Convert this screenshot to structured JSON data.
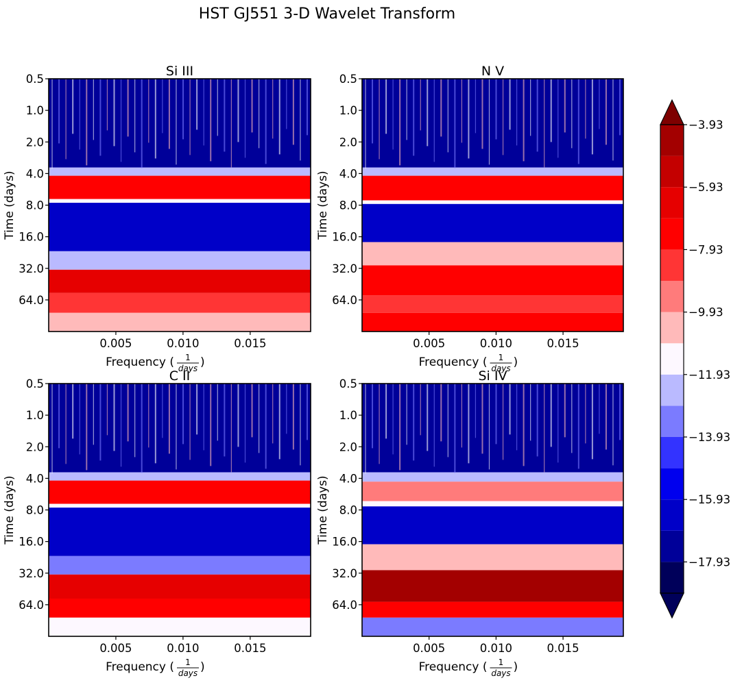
{
  "figure": {
    "title": "HST GJ551 3-D Wavelet Transform"
  },
  "axes_text": {
    "ylabel": "Time (days)",
    "xlabel_prefix": "Frequency (",
    "xlabel_num": "1",
    "xlabel_den": "days",
    "xlabel_suffix": ")"
  },
  "chart_data": [
    {
      "type": "heatmap",
      "title": "Si III",
      "xlim": [
        0,
        0.0195
      ],
      "xticks": [
        0.005,
        0.01,
        0.015
      ],
      "xtick_labels": [
        "0.005",
        "0.010",
        "0.015"
      ],
      "ylim": [
        0.5,
        128
      ],
      "yscale": "log2",
      "yinverted": true,
      "yticks": [
        0.5,
        1.0,
        2.0,
        4.0,
        8.0,
        16.0,
        32.0,
        64.0
      ],
      "ytick_labels": [
        "0.5",
        "1.0",
        "2.0",
        "4.0",
        "8.0",
        "16.0",
        "32.0",
        "64.0"
      ],
      "bands": [
        {
          "t_from": 0.5,
          "t_to": 3.5,
          "level": -17.4
        },
        {
          "t_from": 3.5,
          "t_to": 4.2,
          "level": -12.6
        },
        {
          "t_from": 4.2,
          "t_to": 7.0,
          "level": -7.6
        },
        {
          "t_from": 7.0,
          "t_to": 7.6,
          "level": -11.4
        },
        {
          "t_from": 7.6,
          "t_to": 22.0,
          "level": -16.6
        },
        {
          "t_from": 22.0,
          "t_to": 33.0,
          "level": -12.8
        },
        {
          "t_from": 33.0,
          "t_to": 55.0,
          "level": -6.8
        },
        {
          "t_from": 55.0,
          "t_to": 85.0,
          "level": -8.0
        },
        {
          "t_from": 85.0,
          "t_to": 128.0,
          "level": -10.8
        }
      ]
    },
    {
      "type": "heatmap",
      "title": "N V",
      "xlim": [
        0,
        0.0195
      ],
      "xticks": [
        0.005,
        0.01,
        0.015
      ],
      "xtick_labels": [
        "0.005",
        "0.010",
        "0.015"
      ],
      "ylim": [
        0.5,
        128
      ],
      "yscale": "log2",
      "yinverted": true,
      "yticks": [
        0.5,
        1.0,
        2.0,
        4.0,
        8.0,
        16.0,
        32.0,
        64.0
      ],
      "ytick_labels": [
        "0.5",
        "1.0",
        "2.0",
        "4.0",
        "8.0",
        "16.0",
        "32.0",
        "64.0"
      ],
      "bands": [
        {
          "t_from": 0.5,
          "t_to": 3.5,
          "level": -17.2
        },
        {
          "t_from": 3.5,
          "t_to": 4.2,
          "level": -12.4
        },
        {
          "t_from": 4.2,
          "t_to": 7.2,
          "level": -7.2
        },
        {
          "t_from": 7.2,
          "t_to": 7.8,
          "level": -11.2
        },
        {
          "t_from": 7.8,
          "t_to": 18.0,
          "level": -16.2
        },
        {
          "t_from": 18.0,
          "t_to": 30.0,
          "level": -10.6
        },
        {
          "t_from": 30.0,
          "t_to": 58.0,
          "level": -7.0
        },
        {
          "t_from": 58.0,
          "t_to": 85.0,
          "level": -8.4
        },
        {
          "t_from": 85.0,
          "t_to": 128.0,
          "level": -7.6
        }
      ]
    },
    {
      "type": "heatmap",
      "title": "C II",
      "xlim": [
        0,
        0.0195
      ],
      "xticks": [
        0.005,
        0.01,
        0.015
      ],
      "xtick_labels": [
        "0.005",
        "0.010",
        "0.015"
      ],
      "ylim": [
        0.5,
        128
      ],
      "yscale": "log2",
      "yinverted": true,
      "yticks": [
        0.5,
        1.0,
        2.0,
        4.0,
        8.0,
        16.0,
        32.0,
        64.0
      ],
      "ytick_labels": [
        "0.5",
        "1.0",
        "2.0",
        "4.0",
        "8.0",
        "16.0",
        "32.0",
        "64.0"
      ],
      "bands": [
        {
          "t_from": 0.5,
          "t_to": 3.5,
          "level": -17.2
        },
        {
          "t_from": 3.5,
          "t_to": 4.2,
          "level": -12.4
        },
        {
          "t_from": 4.2,
          "t_to": 7.0,
          "level": -7.4
        },
        {
          "t_from": 7.0,
          "t_to": 7.6,
          "level": -11.4
        },
        {
          "t_from": 7.6,
          "t_to": 22.0,
          "level": -16.6
        },
        {
          "t_from": 22.0,
          "t_to": 33.0,
          "level": -13.2
        },
        {
          "t_from": 33.0,
          "t_to": 56.0,
          "level": -6.4
        },
        {
          "t_from": 56.0,
          "t_to": 85.0,
          "level": -7.8
        },
        {
          "t_from": 85.0,
          "t_to": 128.0,
          "level": -11.0
        }
      ]
    },
    {
      "type": "heatmap",
      "title": "Si IV",
      "xlim": [
        0,
        0.0195
      ],
      "xticks": [
        0.005,
        0.01,
        0.015
      ],
      "xtick_labels": [
        "0.005",
        "0.010",
        "0.015"
      ],
      "ylim": [
        0.5,
        128
      ],
      "yscale": "log2",
      "yinverted": true,
      "yticks": [
        0.5,
        1.0,
        2.0,
        4.0,
        8.0,
        16.0,
        32.0,
        64.0
      ],
      "ytick_labels": [
        "0.5",
        "1.0",
        "2.0",
        "4.0",
        "8.0",
        "16.0",
        "32.0",
        "64.0"
      ],
      "bands": [
        {
          "t_from": 0.5,
          "t_to": 3.5,
          "level": -17.2
        },
        {
          "t_from": 3.5,
          "t_to": 4.3,
          "level": -12.6
        },
        {
          "t_from": 4.3,
          "t_to": 6.6,
          "level": -9.2
        },
        {
          "t_from": 6.6,
          "t_to": 7.4,
          "level": -11.6
        },
        {
          "t_from": 7.4,
          "t_to": 17.0,
          "level": -16.4
        },
        {
          "t_from": 17.0,
          "t_to": 30.0,
          "level": -10.2
        },
        {
          "t_from": 30.0,
          "t_to": 60.0,
          "level": -4.8
        },
        {
          "t_from": 60.0,
          "t_to": 85.0,
          "level": -7.8
        },
        {
          "t_from": 85.0,
          "t_to": 128.0,
          "level": -13.0
        }
      ]
    }
  ],
  "colorbar": {
    "levels": [
      -18.93,
      -17.93,
      -16.93,
      -15.93,
      -14.93,
      -13.93,
      -12.93,
      -11.93,
      -10.93,
      -9.93,
      -8.93,
      -7.93,
      -6.93,
      -5.93,
      -4.93,
      -3.93
    ],
    "colors": [
      "#00005a",
      "#000099",
      "#0000c8",
      "#0000ee",
      "#3333ff",
      "#7b7bff",
      "#babaff",
      "#fdf8ff",
      "#ffbaba",
      "#ff7b7b",
      "#ff3535",
      "#ff0000",
      "#e60000",
      "#c40000",
      "#a30000",
      "#7e0000"
    ],
    "tick_values": [
      -17.93,
      -15.93,
      -13.93,
      -11.93,
      -9.93,
      -7.93,
      -5.93,
      -3.93
    ],
    "tick_labels": [
      "−17.93",
      "−15.93",
      "−13.93",
      "−11.93",
      "−9.93",
      "−7.93",
      "−5.93",
      "−3.93"
    ],
    "extend": "both"
  }
}
